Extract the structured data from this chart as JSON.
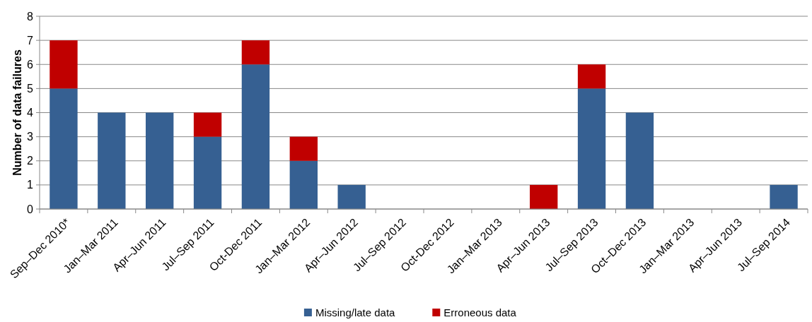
{
  "chart_data": {
    "type": "bar",
    "stacked": true,
    "ylabel": "Number of data failures",
    "categories": [
      "Sep–Dec 2010*",
      "Jan–Mar 2011",
      "Apr–Jun 2011",
      "Jul–Sep 2011",
      "Oct-Dec 2011",
      "Jan–Mar 2012",
      "Apr–Jun 2012",
      "Jul–Sep 2012",
      "Oct-Dec 2012",
      "Jan–Mar 2013",
      "Apr–Jun 2013",
      "Jul–Sep 2013",
      "Oct–Dec 2013",
      "Jan–Mar 2013",
      "Apr–Jun 2013",
      "Jul–Sep 2014"
    ],
    "series": [
      {
        "name": "Missing/late data",
        "color": "#366092",
        "values": [
          5,
          4,
          4,
          3,
          6,
          2,
          1,
          0,
          0,
          0,
          0,
          5,
          4,
          0,
          0,
          1
        ]
      },
      {
        "name": "Erroneous data",
        "color": "#c00000",
        "values": [
          2,
          0,
          0,
          1,
          1,
          1,
          0,
          0,
          0,
          0,
          1,
          1,
          0,
          0,
          0,
          0
        ]
      }
    ],
    "ylim": [
      0,
      8
    ],
    "yticks": [
      0,
      1,
      2,
      3,
      4,
      5,
      6,
      7,
      8
    ],
    "grid": "y",
    "legend": "bottom"
  }
}
